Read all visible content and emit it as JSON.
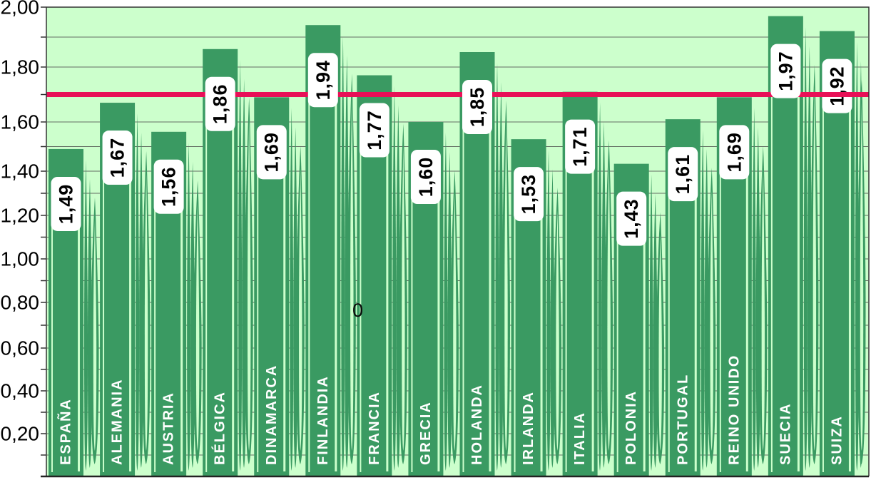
{
  "chart_data": {
    "type": "bar",
    "title": "",
    "xlabel": "",
    "ylabel": "",
    "categories": [
      "ESPAÑA",
      "ALEMANIA",
      "AUSTRIA",
      "BÉLGICA",
      "DINAMARCA",
      "FINLANDIA",
      "FRANCIA",
      "GRECIA",
      "HOLANDA",
      "IRLANDA",
      "ITALIA",
      "POLONIA",
      "PORTUGAL",
      "REINO UNIDO",
      "SUECIA",
      "SUIZA"
    ],
    "values": [
      1.49,
      1.67,
      1.56,
      1.86,
      1.69,
      1.94,
      1.77,
      1.6,
      1.85,
      1.53,
      1.71,
      1.43,
      1.61,
      1.69,
      1.97,
      1.92
    ],
    "value_labels": [
      "1,49",
      "1,67",
      "1,56",
      "1,86",
      "1,69",
      "1,94",
      "1,77",
      "1,60",
      "1,85",
      "1,53",
      "1,71",
      "1,43",
      "1,61",
      "1,69",
      "1,97",
      "1,92"
    ],
    "ylim": [
      0.0,
      2.0
    ],
    "ytick_label_step": 0.2,
    "grid_step": 0.1,
    "ytick_labels": [
      "2,00",
      "1,80",
      "1,60",
      "1,40",
      "1,20",
      "1,00",
      "0,80",
      "0,60",
      "0,40",
      "0,20"
    ],
    "grid_on": true,
    "legend": null,
    "reference_line": {
      "value": 1.7,
      "color": "#e81057"
    },
    "stray_glyph": {
      "text": "0"
    },
    "colors": {
      "plot_bg": "#ccffcc",
      "bar": "#3a9a62",
      "bar_slit": "#ccffcc",
      "grid": "#4a4a4a",
      "border": "#333333",
      "value_box_bg": "#ffffff",
      "value_text": "#000000",
      "country_text": "#ffffff",
      "axis_text": "#000000",
      "reference": "#e81057"
    }
  }
}
